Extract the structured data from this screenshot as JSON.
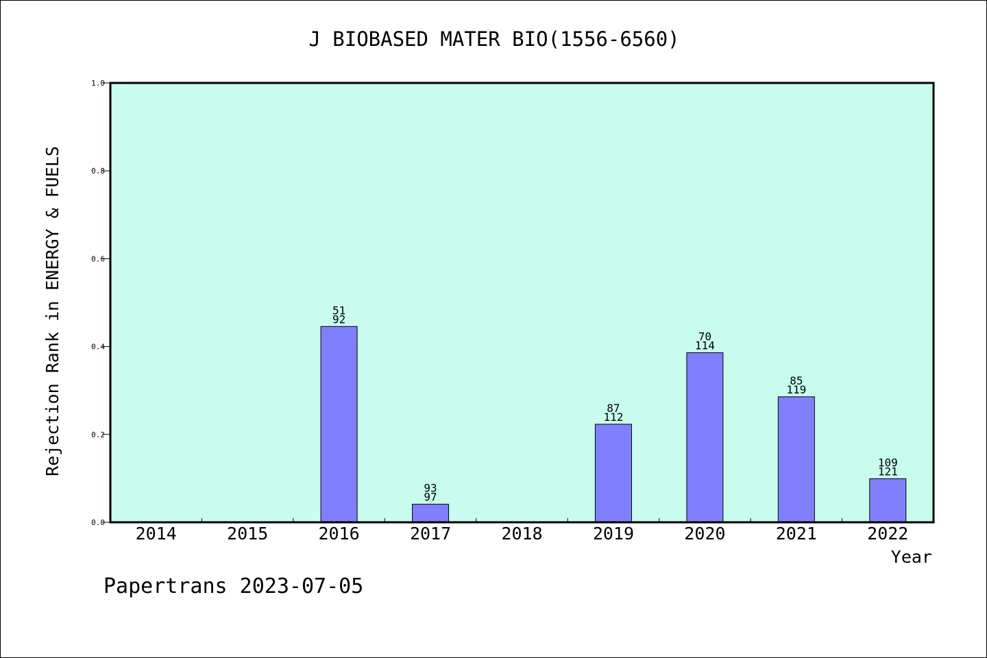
{
  "chart_data": {
    "type": "bar",
    "title": "J BIOBASED MATER BIO(1556-6560)",
    "xlabel": "Year",
    "ylabel": "Rejection Rank in ENERGY & FUELS",
    "ylim": [
      0,
      1.0
    ],
    "yticks": [
      "0.0",
      "0.2",
      "0.4",
      "0.6",
      "0.8",
      "1.0"
    ],
    "categories": [
      "2014",
      "2015",
      "2016",
      "2017",
      "2018",
      "2019",
      "2020",
      "2021",
      "2022"
    ],
    "values": [
      0,
      0,
      0.4457,
      0.0412,
      0,
      0.2232,
      0.386,
      0.2857,
      0.0992
    ],
    "labels_top": [
      "",
      "",
      "51",
      "93",
      "",
      "87",
      "70",
      "85",
      "109"
    ],
    "labels_bottom": [
      "",
      "",
      "92",
      "97",
      "",
      "112",
      "114",
      "119",
      "121"
    ],
    "grid": false,
    "colors": {
      "plot_background": "#c8fcee",
      "bar_fill": "#8080ff",
      "bar_stroke": "#000000",
      "frame": "#000000"
    }
  },
  "footer": "Papertrans 2023-07-05"
}
